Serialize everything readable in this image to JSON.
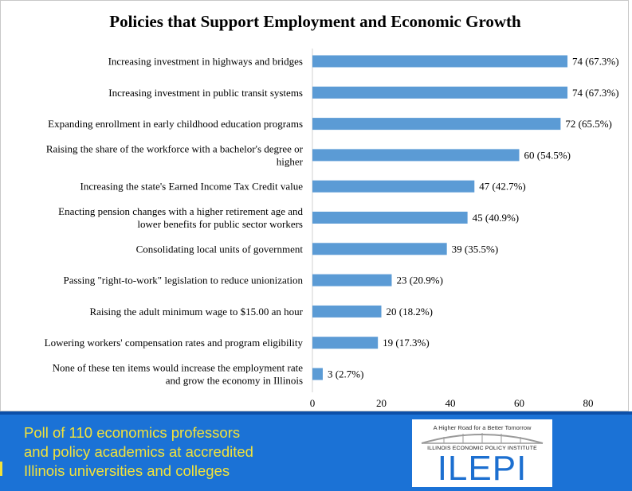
{
  "chart_data": {
    "type": "bar",
    "orientation": "horizontal",
    "title": "Policies that Support Employment and Economic Growth",
    "categories": [
      [
        "Increasing investment in highways and bridges"
      ],
      [
        "Increasing investment in public transit systems"
      ],
      [
        "Expanding enrollment in early childhood education programs"
      ],
      [
        "Raising the share of the workforce with a bachelor's degree or",
        "higher"
      ],
      [
        "Increasing the state's Earned Income Tax Credit value"
      ],
      [
        "Enacting pension changes with a higher retirement age and",
        "lower benefits for public sector workers"
      ],
      [
        "Consolidating local units of government"
      ],
      [
        "Passing \"right-to-work\" legislation to reduce unionization"
      ],
      [
        "Raising the adult minimum wage to $15.00 an hour"
      ],
      [
        "Lowering workers' compensation rates and program eligibility"
      ],
      [
        "None of these ten items would increase the employment rate",
        "and grow the economy in Illinois"
      ]
    ],
    "values": [
      74,
      74,
      72,
      60,
      47,
      45,
      39,
      23,
      20,
      19,
      3
    ],
    "data_labels": [
      "74 (67.3%)",
      "74 (67.3%)",
      "72 (65.5%)",
      "60 (54.5%)",
      "47 (42.7%)",
      "45 (40.9%)",
      "39 (35.5%)",
      "23 (20.9%)",
      "20 (18.2%)",
      "19 (17.3%)",
      "3 (2.7%)"
    ],
    "xlim": [
      0,
      80
    ],
    "xticks": [
      0,
      20,
      40,
      60,
      80
    ],
    "bar_color": "#5b9bd5",
    "grid": false,
    "legend": "none"
  },
  "footer": {
    "lines": [
      "Poll of 110 economics professors",
      "and policy academics at accredited",
      "Illinois universities and colleges"
    ],
    "background_color": "#1b72d6",
    "text_color": "#f2e23a"
  },
  "logo": {
    "tagline": "A Higher Road for a Better Tomorrow",
    "organization": "ILLINOIS ECONOMIC POLICY INSTITUTE",
    "acronym": "ILEPI",
    "color": "#1c6fd0"
  }
}
